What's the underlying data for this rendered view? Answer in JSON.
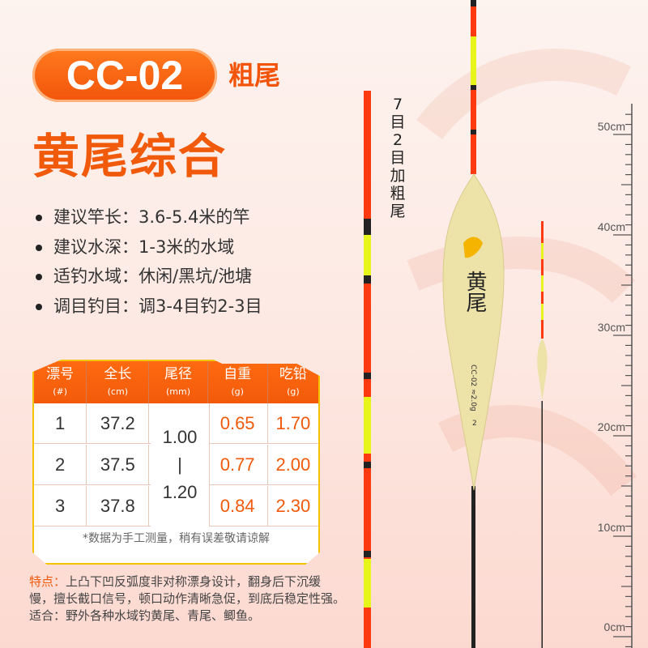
{
  "header": {
    "model": "CC-02",
    "model_suffix": "粗尾",
    "title": "黄尾综合"
  },
  "specs": [
    "建议竿长：3.6-5.4米的竿",
    "建议水深：1-3米的水域",
    "适钓水域：休闲/黑坑/池塘",
    "调目钓目：调3-4目钓2-3目"
  ],
  "table": {
    "headers": [
      {
        "label": "漂号",
        "unit": "(#)"
      },
      {
        "label": "全长",
        "unit": "(cm)"
      },
      {
        "label": "尾径",
        "unit": "(mm)"
      },
      {
        "label": "自重",
        "unit": "(g)"
      },
      {
        "label": "吃铅",
        "unit": "(g)"
      }
    ],
    "rows": [
      {
        "no": "1",
        "length": "37.2",
        "weight": "0.65",
        "lead": "1.70"
      },
      {
        "no": "2",
        "length": "37.5",
        "weight": "0.77",
        "lead": "2.00"
      },
      {
        "no": "3",
        "length": "37.8",
        "weight": "0.84",
        "lead": "2.30"
      }
    ],
    "tail_diameter": {
      "min": "1.00",
      "sep": "|",
      "max": "1.20"
    },
    "note": "*数据为手工测量，稍有误差敬请谅解"
  },
  "features": {
    "label": "特点：",
    "text": "上凸下凹反弧度非对称漂身设计，翻身后下沉缓慢，擅长截口信号，顿口动作清晰急促，到底后稳定性强。适合：野外各种水域钓黄尾、青尾、鲫鱼。"
  },
  "float_label": "7目2目加粗尾",
  "float_body": {
    "brand": "黄尾",
    "marking": "CC-02 ≈2.0g",
    "number": "2"
  },
  "ruler": {
    "labels": [
      "50cm",
      "40cm",
      "30cm",
      "20cm",
      "10cm",
      "0cm"
    ]
  },
  "colors": {
    "accent": "#f05a0a",
    "tail_red": "#ff3a10",
    "tail_yellow": "#e8f51a",
    "body": "#ede2a8"
  }
}
